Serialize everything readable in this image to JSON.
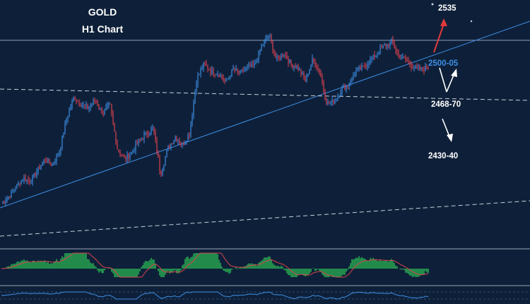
{
  "chart_data": {
    "type": "line",
    "title": "GOLD",
    "subtitle": "H1 Chart",
    "annotations": [
      {
        "text": "2535",
        "kind": "target",
        "color": "#ffffff"
      },
      {
        "text": "2500-05",
        "kind": "support",
        "color": "#3d8fe6"
      },
      {
        "text": "2468-70",
        "kind": "support",
        "color": "#ffffff"
      },
      {
        "text": "2430-40",
        "kind": "support",
        "color": "#ffffff"
      }
    ],
    "price_path": [
      2432,
      2436,
      2441,
      2446,
      2444,
      2450,
      2456,
      2453,
      2460,
      2478,
      2490,
      2486,
      2484,
      2488,
      2481,
      2486,
      2462,
      2456,
      2460,
      2466,
      2470,
      2473,
      2448,
      2462,
      2468,
      2464,
      2470,
      2500,
      2508,
      2504,
      2503,
      2498,
      2505,
      2503,
      2506,
      2507,
      2518,
      2524,
      2510,
      2514,
      2508,
      2506,
      2499,
      2510,
      2504,
      2486,
      2488,
      2494,
      2497,
      2504,
      2506,
      2510,
      2514,
      2518,
      2520,
      2512,
      2510,
      2506,
      2505,
      2506
    ],
    "trendlines": [
      {
        "style": "solid",
        "color": "#3d8fe6"
      },
      {
        "style": "dashed",
        "color": "#c8d0dc"
      },
      {
        "style": "dashed",
        "color": "#c8d0dc"
      }
    ],
    "oscillator": {
      "type": "histogram",
      "positive_color": "#2fd35a",
      "signal_color": "#d8434a"
    },
    "colors": {
      "background": "#0e2039",
      "bull_candle": "#3d8fe6",
      "bear_candle": "#e04050",
      "up_arrow": "#e03a3a",
      "down_arrow": "#ffffff"
    }
  }
}
